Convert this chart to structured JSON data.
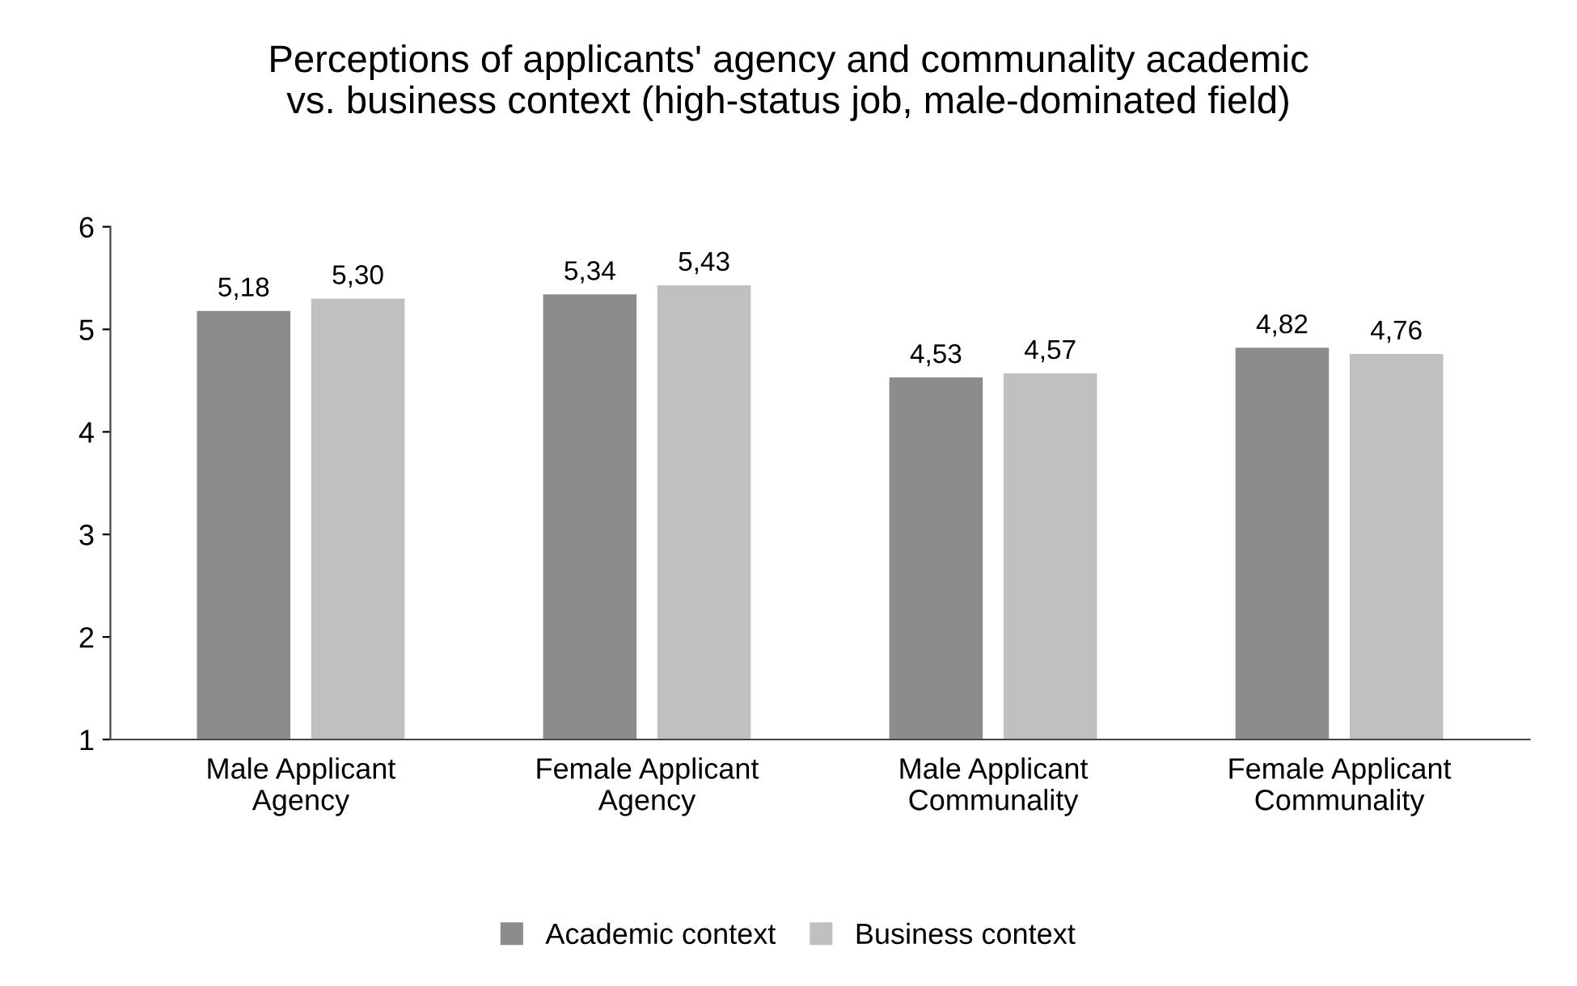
{
  "chart_data": {
    "type": "bar",
    "title": "Perceptions of applicants' agency and communality academic\nvs. business context (high-status job, male-dominated field)",
    "categories": [
      "Male Applicant\nAgency",
      "Female Applicant\nAgency",
      "Male Applicant\nCommunality",
      "Female Applicant\nCommunality"
    ],
    "series": [
      {
        "name": "Academic context",
        "color": "#8c8c8c",
        "values": [
          5.18,
          5.34,
          4.53,
          4.82
        ],
        "value_labels": [
          "5,18",
          "5,34",
          "4,53",
          "4,82"
        ]
      },
      {
        "name": "Business context",
        "color": "#c0c0c0",
        "values": [
          5.3,
          5.43,
          4.57,
          4.76
        ],
        "value_labels": [
          "5,30",
          "5,43",
          "4,57",
          "4,76"
        ]
      }
    ],
    "ylim": [
      1,
      6
    ],
    "yticks": [
      1,
      2,
      3,
      4,
      5,
      6
    ],
    "grid": false,
    "legend": "bottom"
  }
}
